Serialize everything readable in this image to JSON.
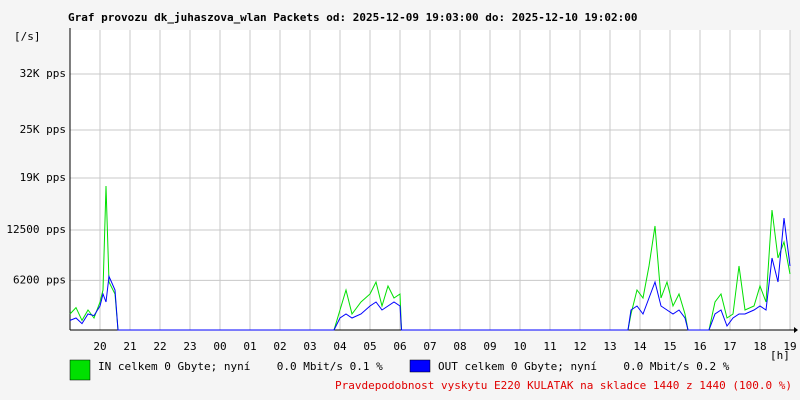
{
  "chart_data": {
    "type": "line",
    "title": "Graf provozu dk_juhaszova_wlan Packets od: 2025-12-09 19:03:00 do: 2025-12-10 19:02:00",
    "y_label": "[/s]",
    "x_label": "[h]",
    "annotation": "Pravdepodobnost vyskytu E220 KULATAK na skladce 1440 z 1440 (100.0 %)",
    "grid": true,
    "xlim": [
      0,
      24
    ],
    "xticks": [
      {
        "value": 1,
        "label": "20"
      },
      {
        "value": 2,
        "label": "21"
      },
      {
        "value": 3,
        "label": "22"
      },
      {
        "value": 4,
        "label": "23"
      },
      {
        "value": 5,
        "label": "00"
      },
      {
        "value": 6,
        "label": "01"
      },
      {
        "value": 7,
        "label": "02"
      },
      {
        "value": 8,
        "label": "03"
      },
      {
        "value": 9,
        "label": "04"
      },
      {
        "value": 10,
        "label": "05"
      },
      {
        "value": 11,
        "label": "06"
      },
      {
        "value": 12,
        "label": "07"
      },
      {
        "value": 13,
        "label": "08"
      },
      {
        "value": 14,
        "label": "09"
      },
      {
        "value": 15,
        "label": "10"
      },
      {
        "value": 16,
        "label": "11"
      },
      {
        "value": 17,
        "label": "12"
      },
      {
        "value": 18,
        "label": "13"
      },
      {
        "value": 19,
        "label": "14"
      },
      {
        "value": 20,
        "label": "15"
      },
      {
        "value": 21,
        "label": "16"
      },
      {
        "value": 22,
        "label": "17"
      },
      {
        "value": 23,
        "label": "18"
      },
      {
        "value": 24,
        "label": "19"
      }
    ],
    "ylim": [
      0,
      37500
    ],
    "yticks": [
      {
        "value": 6200,
        "label": "6200 pps"
      },
      {
        "value": 12500,
        "label": "12500 pps"
      },
      {
        "value": 19000,
        "label": "19K pps"
      },
      {
        "value": 25000,
        "label": "25K pps"
      },
      {
        "value": 32000,
        "label": "32K pps"
      }
    ],
    "x": [
      0,
      0.2,
      0.4,
      0.6,
      0.8,
      1.0,
      1.1,
      1.2,
      1.3,
      1.5,
      1.6,
      8.8,
      9.0,
      9.2,
      9.4,
      9.7,
      10.0,
      10.2,
      10.4,
      10.6,
      10.8,
      11.0,
      11.05,
      18.6,
      18.7,
      18.9,
      19.1,
      19.3,
      19.5,
      19.7,
      19.9,
      20.1,
      20.3,
      20.5,
      20.6,
      21.3,
      21.5,
      21.7,
      21.9,
      22.1,
      22.3,
      22.5,
      22.8,
      23.0,
      23.2,
      23.4,
      23.6,
      23.8,
      24.0
    ],
    "series": [
      {
        "name": "IN celkem 0 Gbyte; nyní    0.0 Mbit/s 0.1 %",
        "color": "#00e000",
        "values": [
          2000,
          2800,
          1200,
          2500,
          1500,
          3500,
          5000,
          18000,
          6000,
          4500,
          0,
          0,
          2500,
          5000,
          2000,
          3500,
          4500,
          6000,
          3000,
          5500,
          4000,
          4500,
          0,
          0,
          2000,
          5000,
          4000,
          8000,
          13000,
          4000,
          6000,
          3000,
          4500,
          2000,
          0,
          0,
          3500,
          4500,
          1500,
          2000,
          8000,
          2500,
          3000,
          5500,
          3500,
          15000,
          9000,
          11000,
          7000
        ]
      },
      {
        "name": "OUT celkem 0 Gbyte; nyní    0.0 Mbit/s 0.2 %",
        "color": "#0000ff",
        "values": [
          1200,
          1500,
          800,
          2000,
          1800,
          3000,
          4500,
          3500,
          6700,
          5000,
          0,
          0,
          1500,
          2000,
          1500,
          2000,
          3000,
          3500,
          2500,
          3000,
          3500,
          3000,
          0,
          0,
          2500,
          3000,
          2000,
          4000,
          6000,
          3000,
          2500,
          2000,
          2500,
          1500,
          0,
          0,
          2000,
          2500,
          500,
          1500,
          2000,
          2000,
          2500,
          3000,
          2500,
          9000,
          6000,
          14000,
          8000
        ]
      }
    ]
  }
}
